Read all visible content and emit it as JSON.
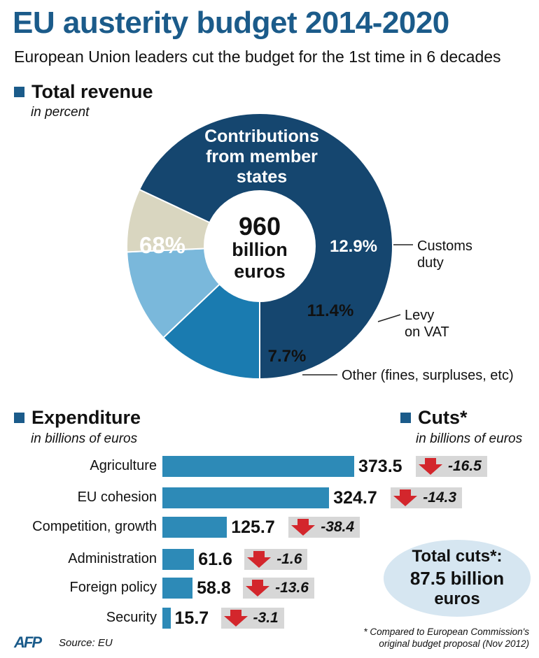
{
  "header": {
    "title": "EU austerity budget 2014-2020",
    "subtitle": "European Union leaders cut the budget for the 1st time in 6 decades"
  },
  "revenue": {
    "heading": "Total revenue",
    "unit": "in percent",
    "center_line1": "960",
    "center_line2": "billion",
    "center_line3": "euros",
    "contrib_line1": "Contributions",
    "contrib_line2": "from member",
    "contrib_line3": "states",
    "callouts": {
      "customs_line1": "Customs",
      "customs_line2": "duty",
      "levy_line1": "Levy",
      "levy_line2": "on VAT",
      "other": "Other (fines, surpluses, etc)"
    }
  },
  "expenditure": {
    "heading": "Expenditure",
    "unit": "in billions of euros"
  },
  "cuts": {
    "heading": "Cuts*",
    "unit": "in billions of euros"
  },
  "total_cuts": {
    "line1": "Total cuts*:",
    "line2": "87.5 billion",
    "line3": "euros"
  },
  "footnote": {
    "line1": "* Compared to European Commission's",
    "line2": "original budget proposal (Nov 2012)"
  },
  "source": {
    "logo": "AFP",
    "text": "Source: EU"
  },
  "colors": {
    "title_blue": "#1b5b8a",
    "contributions": "#15466f",
    "customs": "#1a7bb0",
    "levy": "#7ab8db",
    "other": "#d9d6c0",
    "bar": "#2d8ab7",
    "arrow": "#d3262c",
    "cut_box": "#d7d7d7",
    "total_ellipse": "#d6e6f1"
  },
  "chart_data": [
    {
      "type": "pie",
      "title": "Total revenue",
      "categories": [
        "Contributions from member states",
        "Customs duty",
        "Levy on VAT",
        "Other (fines, surpluses, etc)"
      ],
      "labels": [
        "68%",
        "12.9%",
        "11.4%",
        "7.7%"
      ],
      "values": [
        68,
        12.9,
        11.4,
        7.7
      ]
    },
    {
      "type": "bar",
      "title": "Expenditure",
      "categories": [
        "Agriculture",
        "EU cohesion",
        "Competition, growth",
        "Administration",
        "Foreign policy",
        "Security"
      ],
      "values": [
        373.5,
        324.7,
        125.7,
        61.6,
        58.8,
        15.7
      ],
      "value_labels": [
        "373.5",
        "324.7",
        "125.7",
        "61.6",
        "58.8",
        "15.7"
      ],
      "cuts": [
        -16.5,
        -14.3,
        -38.4,
        -1.6,
        -13.6,
        -3.1
      ],
      "cut_labels": [
        "-16.5",
        "-14.3",
        "-38.4",
        "-1.6",
        "-13.6",
        "-3.1"
      ]
    }
  ]
}
